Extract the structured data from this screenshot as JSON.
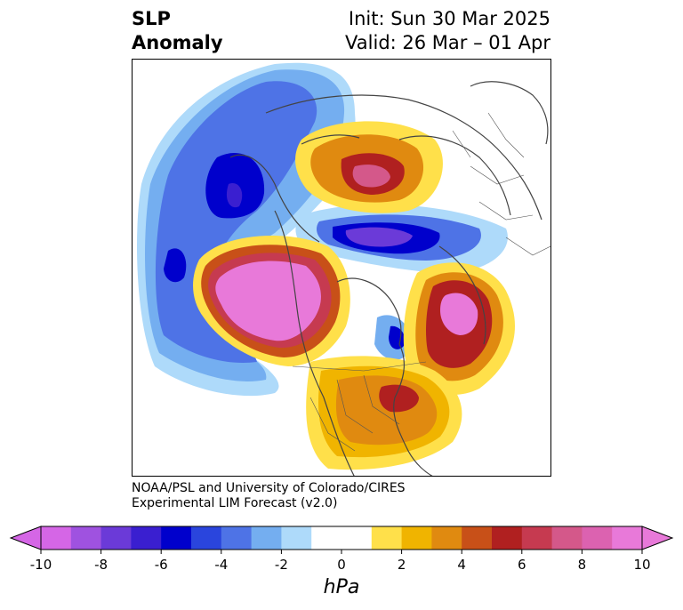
{
  "title": {
    "line1_left": "SLP",
    "line2_left": "Anomaly",
    "line1_right": "Init: Sun 30 Mar 2025",
    "line2_right": "Valid: 26 Mar – 01 Apr"
  },
  "credit": {
    "line1": "NOAA/PSL and University of Colorado/CIRES",
    "line2": "Experimental LIM Forecast (v2.0)"
  },
  "colorbar": {
    "unit": "hPa",
    "ticks": [
      "-10",
      "-8",
      "-6",
      "-4",
      "-2",
      "0",
      "2",
      "4",
      "6",
      "8",
      "10"
    ],
    "colors": [
      "#d566e6",
      "#9f52e0",
      "#6b3ad8",
      "#3a1fd0",
      "#0000cc",
      "#2a45dd",
      "#4e73e6",
      "#74aef0",
      "#aedafa",
      "#ffffff",
      "#ffffff",
      "#ffe04a",
      "#f0b400",
      "#e08a10",
      "#c85018",
      "#b02020",
      "#c63a50",
      "#d4588a",
      "#dc62b0",
      "#e879d9"
    ],
    "extend_low_color": "#d566e6",
    "extend_high_color": "#e879d9"
  }
}
